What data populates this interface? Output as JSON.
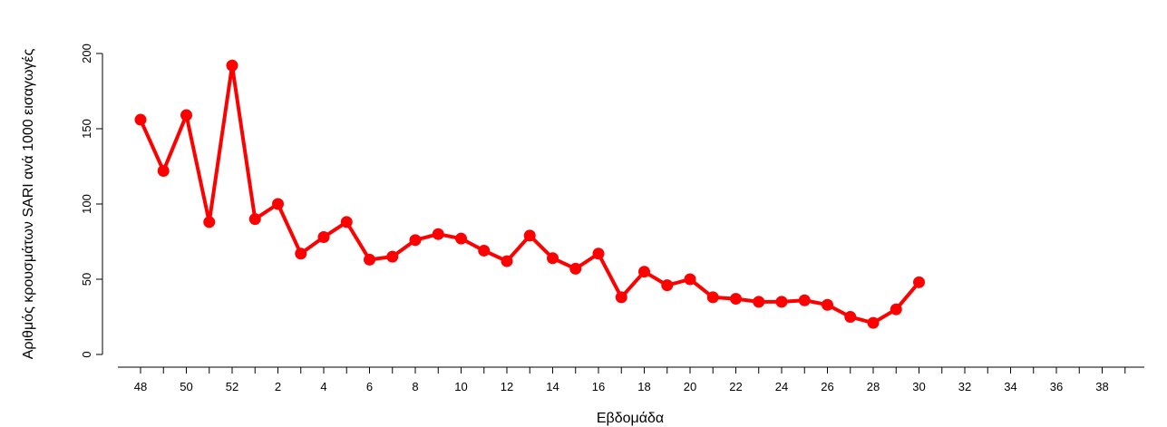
{
  "chart_data": {
    "type": "line",
    "title": "",
    "xlabel": "Εβδομάδα",
    "ylabel": "Αριθμός κρουσμάτων SARI ανά 1000 εισαγωγές",
    "ylim": [
      0,
      200
    ],
    "y_ticks": [
      0,
      50,
      100,
      150,
      200
    ],
    "x_categories": [
      "48",
      "49",
      "50",
      "51",
      "52",
      "1",
      "2",
      "3",
      "4",
      "5",
      "6",
      "7",
      "8",
      "9",
      "10",
      "11",
      "12",
      "13",
      "14",
      "15",
      "16",
      "17",
      "18",
      "19",
      "20",
      "21",
      "22",
      "23",
      "24",
      "25",
      "26",
      "27",
      "28",
      "29",
      "30",
      "31",
      "32",
      "33",
      "34",
      "35",
      "36",
      "37",
      "38",
      "39"
    ],
    "x_tick_labels": [
      "48",
      "",
      "50",
      "",
      "52",
      "",
      "2",
      "",
      "4",
      "",
      "6",
      "",
      "8",
      "",
      "10",
      "",
      "12",
      "",
      "14",
      "",
      "16",
      "",
      "18",
      "",
      "20",
      "",
      "22",
      "",
      "24",
      "",
      "26",
      "",
      "28",
      "",
      "30",
      "",
      "32",
      "",
      "34",
      "",
      "36",
      "",
      "38",
      ""
    ],
    "series": [
      {
        "color": "#ff0000",
        "values": [
          156,
          122,
          159,
          88,
          192,
          90,
          100,
          67,
          78,
          88,
          63,
          65,
          76,
          80,
          77,
          69,
          62,
          79,
          64,
          57,
          67,
          38,
          55,
          46,
          50,
          38,
          37,
          35,
          35,
          36,
          33,
          25,
          21,
          30,
          48
        ]
      }
    ],
    "grid": false,
    "legend": "none"
  }
}
